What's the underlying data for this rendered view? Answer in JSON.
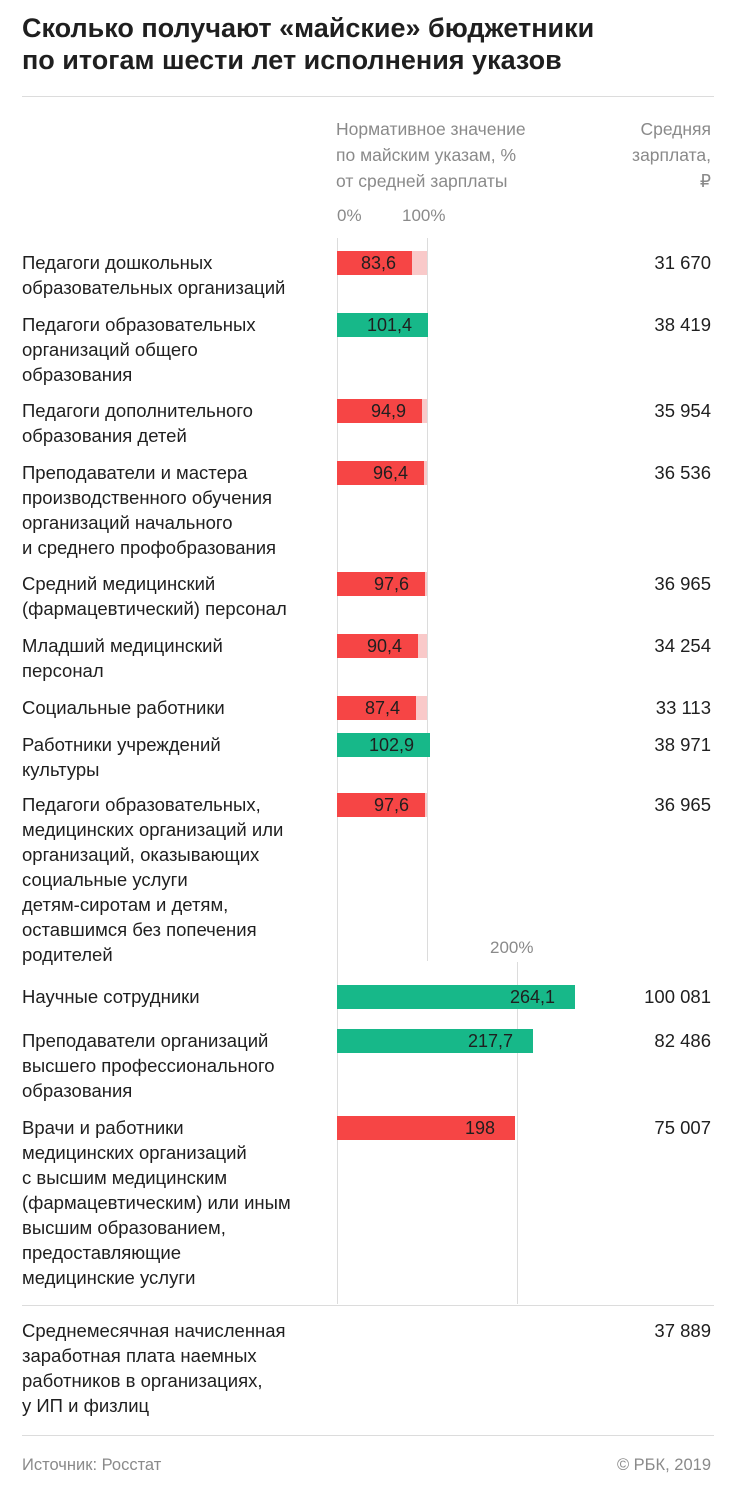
{
  "title": {
    "lines": [
      "Сколько получают «майские» бюджетники",
      "по итогам шести лет исполнения указов"
    ]
  },
  "columns": {
    "left_header": [
      "Нормативное значение",
      "по майским указам, %",
      "от средней зарплаты"
    ],
    "right_header": [
      "Средняя",
      "зарплата,",
      "₽"
    ]
  },
  "ticks": {
    "t0": "0%",
    "t100": "100%",
    "t200": "200%"
  },
  "colors": {
    "above": "#17b889",
    "below": "#f64545",
    "below_remainder": "#f9c9c9",
    "grid": "#dcdcdc",
    "muted_text": "#8a8a8a"
  },
  "chart_data": {
    "type": "bar",
    "orientation": "horizontal",
    "xlim": [
      0,
      264.1
    ],
    "reference_lines": [
      100,
      200
    ],
    "categories": [
      [
        "Педагоги дошкольных",
        "образовательных организаций"
      ],
      [
        "Педагоги образовательных",
        "организаций общего",
        "образования"
      ],
      [
        "Педагоги дополнительного",
        "образования детей"
      ],
      [
        "Преподаватели и мастера",
        "производственного обучения",
        "организаций начального",
        "и среднего профобразования"
      ],
      [
        "Средний медицинский",
        "(фармацевтический) персонал"
      ],
      [
        "Младший медицинский",
        "персонал"
      ],
      [
        "Социальные работники"
      ],
      [
        "Работники учреждений",
        "культуры"
      ],
      [
        "Педагоги образовательных,",
        "медицинских организаций или",
        "организаций, оказывающих",
        "социальные услуги",
        "детям-сиротам и детям,",
        "оставшимся без попечения",
        "родителей"
      ],
      [
        "Научные сотрудники"
      ],
      [
        "Преподаватели организаций",
        "высшего профессионального",
        "образования"
      ],
      [
        "Врачи и работники",
        "медицинских организаций",
        "с высшим медицинским",
        "(фармацевтическим) или иным",
        "высшим образованием,",
        "предоставляющие",
        "медицинские услуги"
      ]
    ],
    "values": [
      83.6,
      101.4,
      94.9,
      96.4,
      97.6,
      90.4,
      87.4,
      102.9,
      97.6,
      264.1,
      217.7,
      198
    ],
    "value_labels": [
      "83,6",
      "101,4",
      "94,9",
      "96,4",
      "97,6",
      "90,4",
      "87,4",
      "102,9",
      "97,6",
      "264,1",
      "217,7",
      "198"
    ],
    "status": [
      "below",
      "above",
      "below",
      "below",
      "below",
      "below",
      "below",
      "above",
      "below",
      "above",
      "above",
      "below"
    ],
    "salaries": [
      "31 670",
      "38 419",
      "35 954",
      "36 536",
      "36 965",
      "34 254",
      "33 113",
      "38 971",
      "36 965",
      "100 081",
      "82 486",
      "75 007"
    ]
  },
  "summary": {
    "label": [
      "Среднемесячная начисленная",
      "заработная плата наемных",
      "работников в организациях,",
      "у ИП и физлиц"
    ],
    "salary": "37 889"
  },
  "footer": {
    "source": "Источник: Росстат",
    "credit": "© РБК, 2019"
  }
}
